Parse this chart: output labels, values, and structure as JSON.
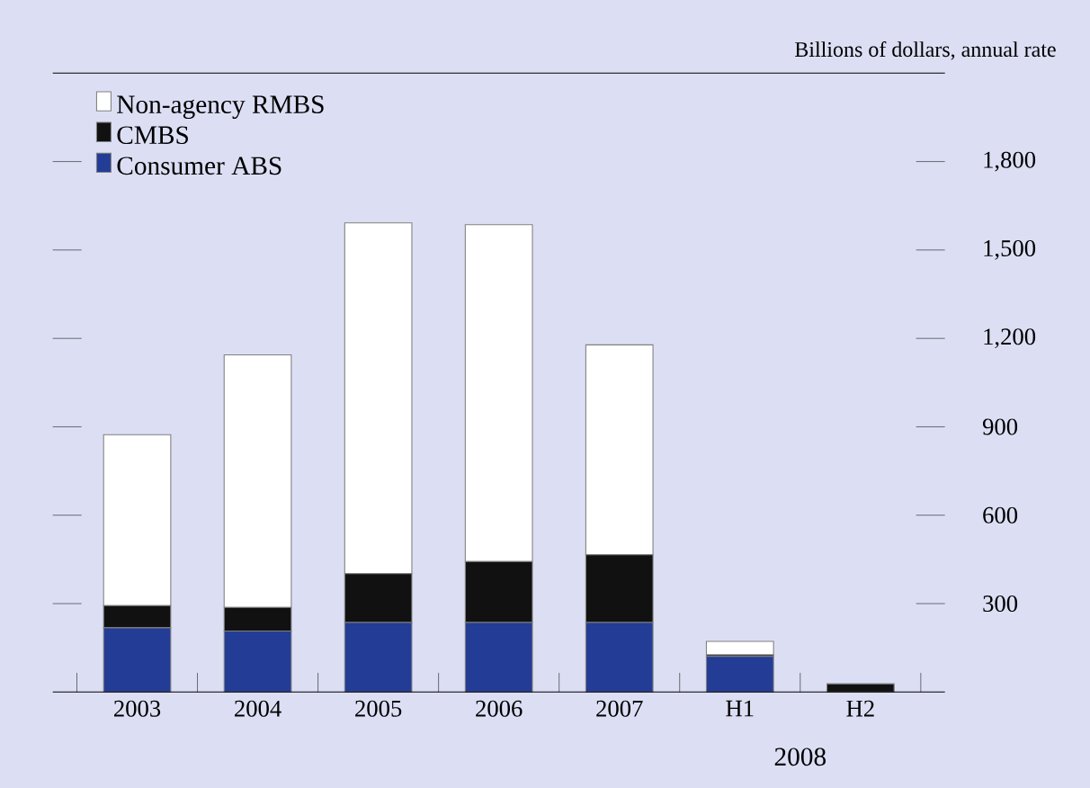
{
  "chart_data": {
    "type": "bar",
    "stacked": true,
    "ylabel": "Billions of dollars, annual rate",
    "categories": [
      "2003",
      "2004",
      "2005",
      "2006",
      "2007",
      "H1",
      "H2"
    ],
    "annotations": [
      "2008"
    ],
    "series": [
      {
        "name": "Consumer ABS",
        "color": "#233c96",
        "values": [
          218,
          207,
          236,
          236,
          236,
          121,
          0
        ]
      },
      {
        "name": "CMBS",
        "color": "#111111",
        "values": [
          75,
          80,
          166,
          207,
          230,
          5,
          28
        ]
      },
      {
        "name": "Non-agency RMBS",
        "color": "#ffffff",
        "values": [
          580,
          857,
          1190,
          1143,
          712,
          46,
          0
        ]
      }
    ],
    "ylim": [
      0,
      2100
    ],
    "yticks": [
      {
        "value": 300,
        "label": "300"
      },
      {
        "value": 600,
        "label": "600"
      },
      {
        "value": 900,
        "label": "900"
      },
      {
        "value": 1200,
        "label": "1,200"
      },
      {
        "value": 1500,
        "label": "1,500"
      },
      {
        "value": 1800,
        "label": "1,800"
      }
    ],
    "grid": false,
    "legend": "top left"
  }
}
